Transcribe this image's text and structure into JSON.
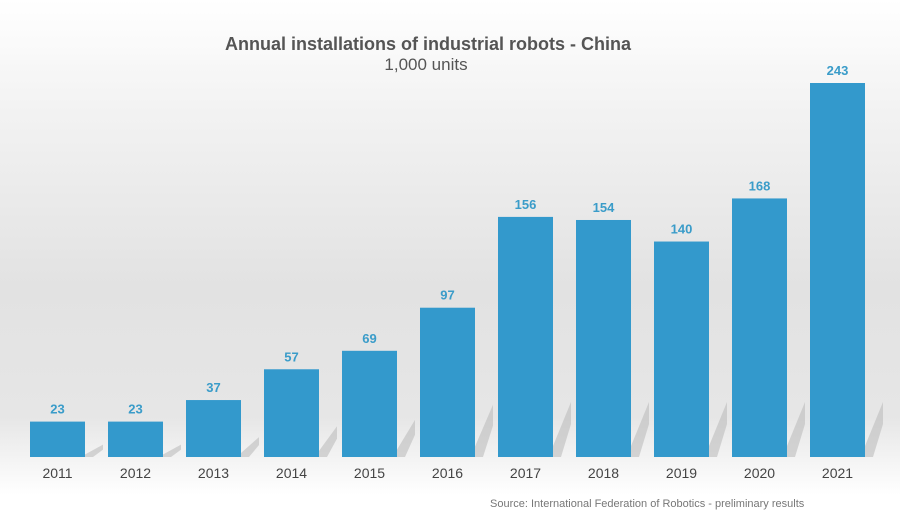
{
  "chart_data": {
    "type": "bar",
    "title": "Annual installations of industrial robots - China",
    "subtitle": "1,000 units",
    "categories": [
      "2011",
      "2012",
      "2013",
      "2014",
      "2015",
      "2016",
      "2017",
      "2018",
      "2019",
      "2020",
      "2021"
    ],
    "values": [
      23,
      23,
      37,
      57,
      69,
      97,
      156,
      154,
      140,
      168,
      243
    ],
    "xlabel": "",
    "ylabel": "",
    "ylim": [
      0,
      243
    ],
    "grid": false,
    "data_labels": true,
    "bar_color": "#3399cc",
    "label_color": "#3a9cc9",
    "source": "Source: International Federation of Robotics - preliminary results"
  }
}
